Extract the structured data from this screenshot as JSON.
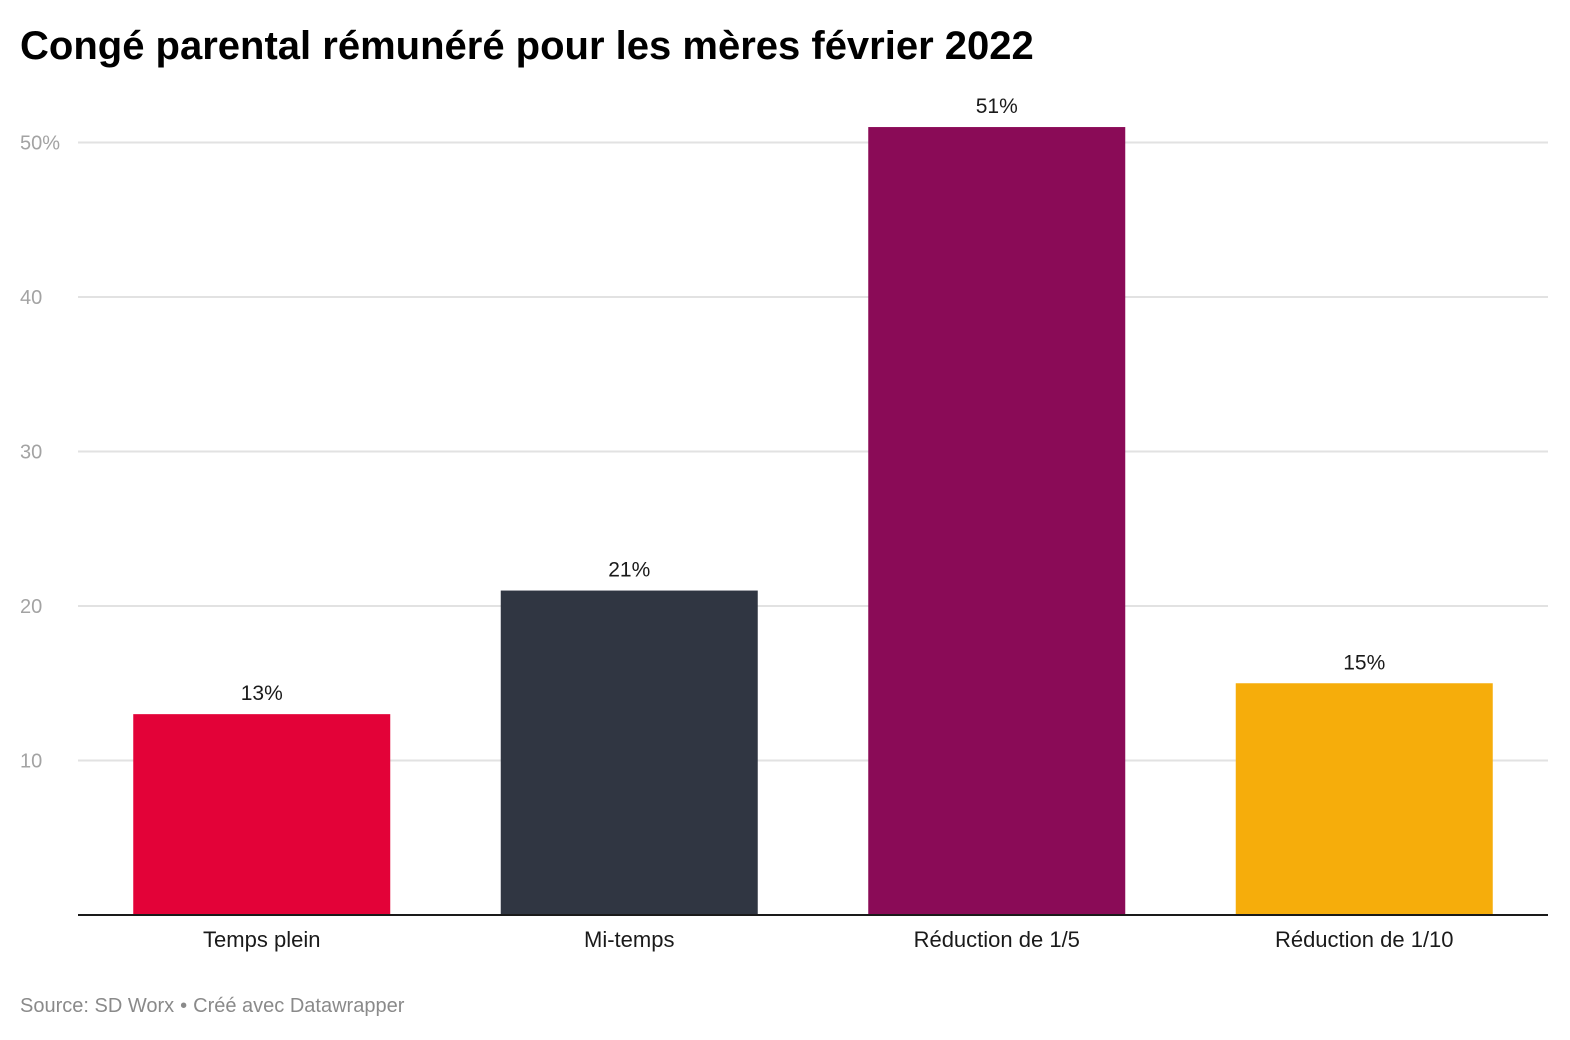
{
  "chart_data": {
    "type": "bar",
    "title": "Congé parental rémunéré pour les mères février 2022",
    "xlabel": "",
    "ylabel": "",
    "categories": [
      "Temps plein",
      "Mi-temps",
      "Réduction de 1/5",
      "Réduction de 1/10"
    ],
    "values": [
      13,
      21,
      51,
      15
    ],
    "value_labels": [
      "13%",
      "21%",
      "51%",
      "15%"
    ],
    "colors": [
      "#e30238",
      "#303642",
      "#8a0b57",
      "#f6ad0b"
    ],
    "ylim": [
      0,
      51
    ],
    "yticks": [
      10,
      20,
      30,
      40,
      50
    ],
    "ytick_labels": [
      "10",
      "20",
      "30",
      "40",
      "50%"
    ],
    "grid": true,
    "legend": "none"
  },
  "footer": {
    "source": "Source: SD Worx",
    "separator": "•",
    "credit": "Créé avec Datawrapper"
  }
}
